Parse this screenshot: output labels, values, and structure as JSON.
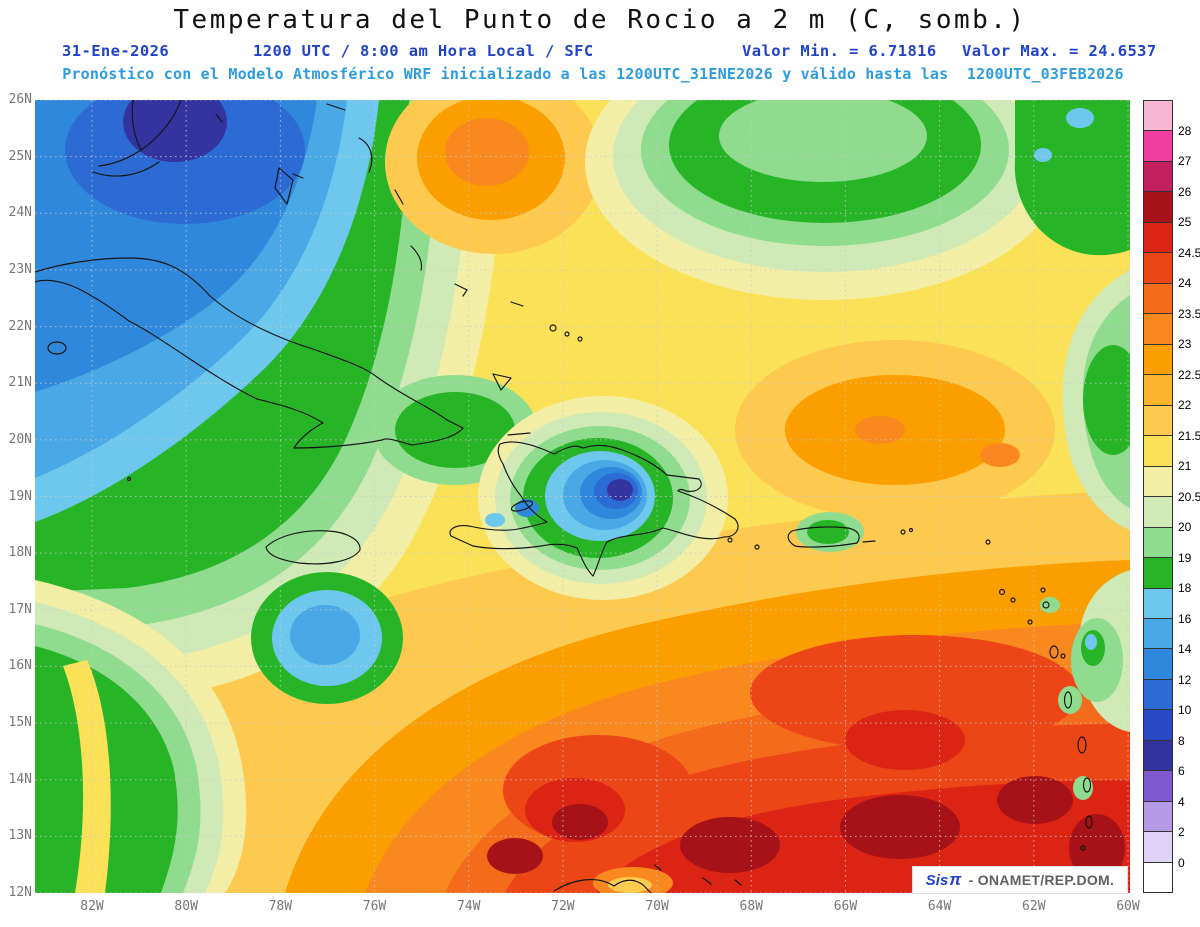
{
  "header": {
    "title": "Temperatura del Punto de Rocio a 2 m (C, somb.)",
    "date": "31-Ene-2026",
    "time_line": "1200 UTC / 8:00 am Hora Local / SFC",
    "valor_min": "Valor Min. = 6.71816",
    "valor_max": "Valor Max. = 24.6537",
    "forecast_line": "Pronóstico con el Modelo Atmosférico WRF inicializado a las 1200UTC_31ENE2026 y válido hasta las  1200UTC_03FEB2026"
  },
  "map": {
    "lat_labels": [
      "26N",
      "25N",
      "24N",
      "23N",
      "22N",
      "21N",
      "20N",
      "19N",
      "18N",
      "17N",
      "16N",
      "15N",
      "14N",
      "13N",
      "12N"
    ],
    "lon_labels": [
      "82W",
      "80W",
      "78W",
      "76W",
      "74W",
      "72W",
      "70W",
      "68W",
      "66W",
      "64W",
      "62W",
      "60W"
    ]
  },
  "colorbar": {
    "tick_labels": [
      "28",
      "27",
      "26",
      "25",
      "24.5",
      "24",
      "23.5",
      "23",
      "22.5",
      "22",
      "21.5",
      "21",
      "20.5",
      "20",
      "19",
      "18",
      "16",
      "14",
      "12",
      "10",
      "8",
      "6",
      "4",
      "2",
      "0"
    ],
    "colors_top_to_bottom": [
      "#f7b6d2",
      "#ee3fa0",
      "#c32060",
      "#a61218",
      "#dc2414",
      "#ec4617",
      "#f46b1b",
      "#f9891e",
      "#fb9e00",
      "#fcb42e",
      "#fdc94e",
      "#fbe158",
      "#f3eea6",
      "#cfeab6",
      "#8fdc8f",
      "#27b427",
      "#6ec8ee",
      "#4aa8e6",
      "#3088dc",
      "#2c6ad4",
      "#2848c6",
      "#3434a0",
      "#7e5ace",
      "#b49ae4",
      "#ded2f6",
      "#ffffff"
    ]
  },
  "colors": {
    "header_blue": "#2143cb",
    "forecast_blue": "#2e9ce0",
    "brand_blue": "#2143cb"
  },
  "attribution": {
    "brand": "Sis",
    "symbol": "π",
    "org": " - ONAMET/REP.DOM."
  }
}
